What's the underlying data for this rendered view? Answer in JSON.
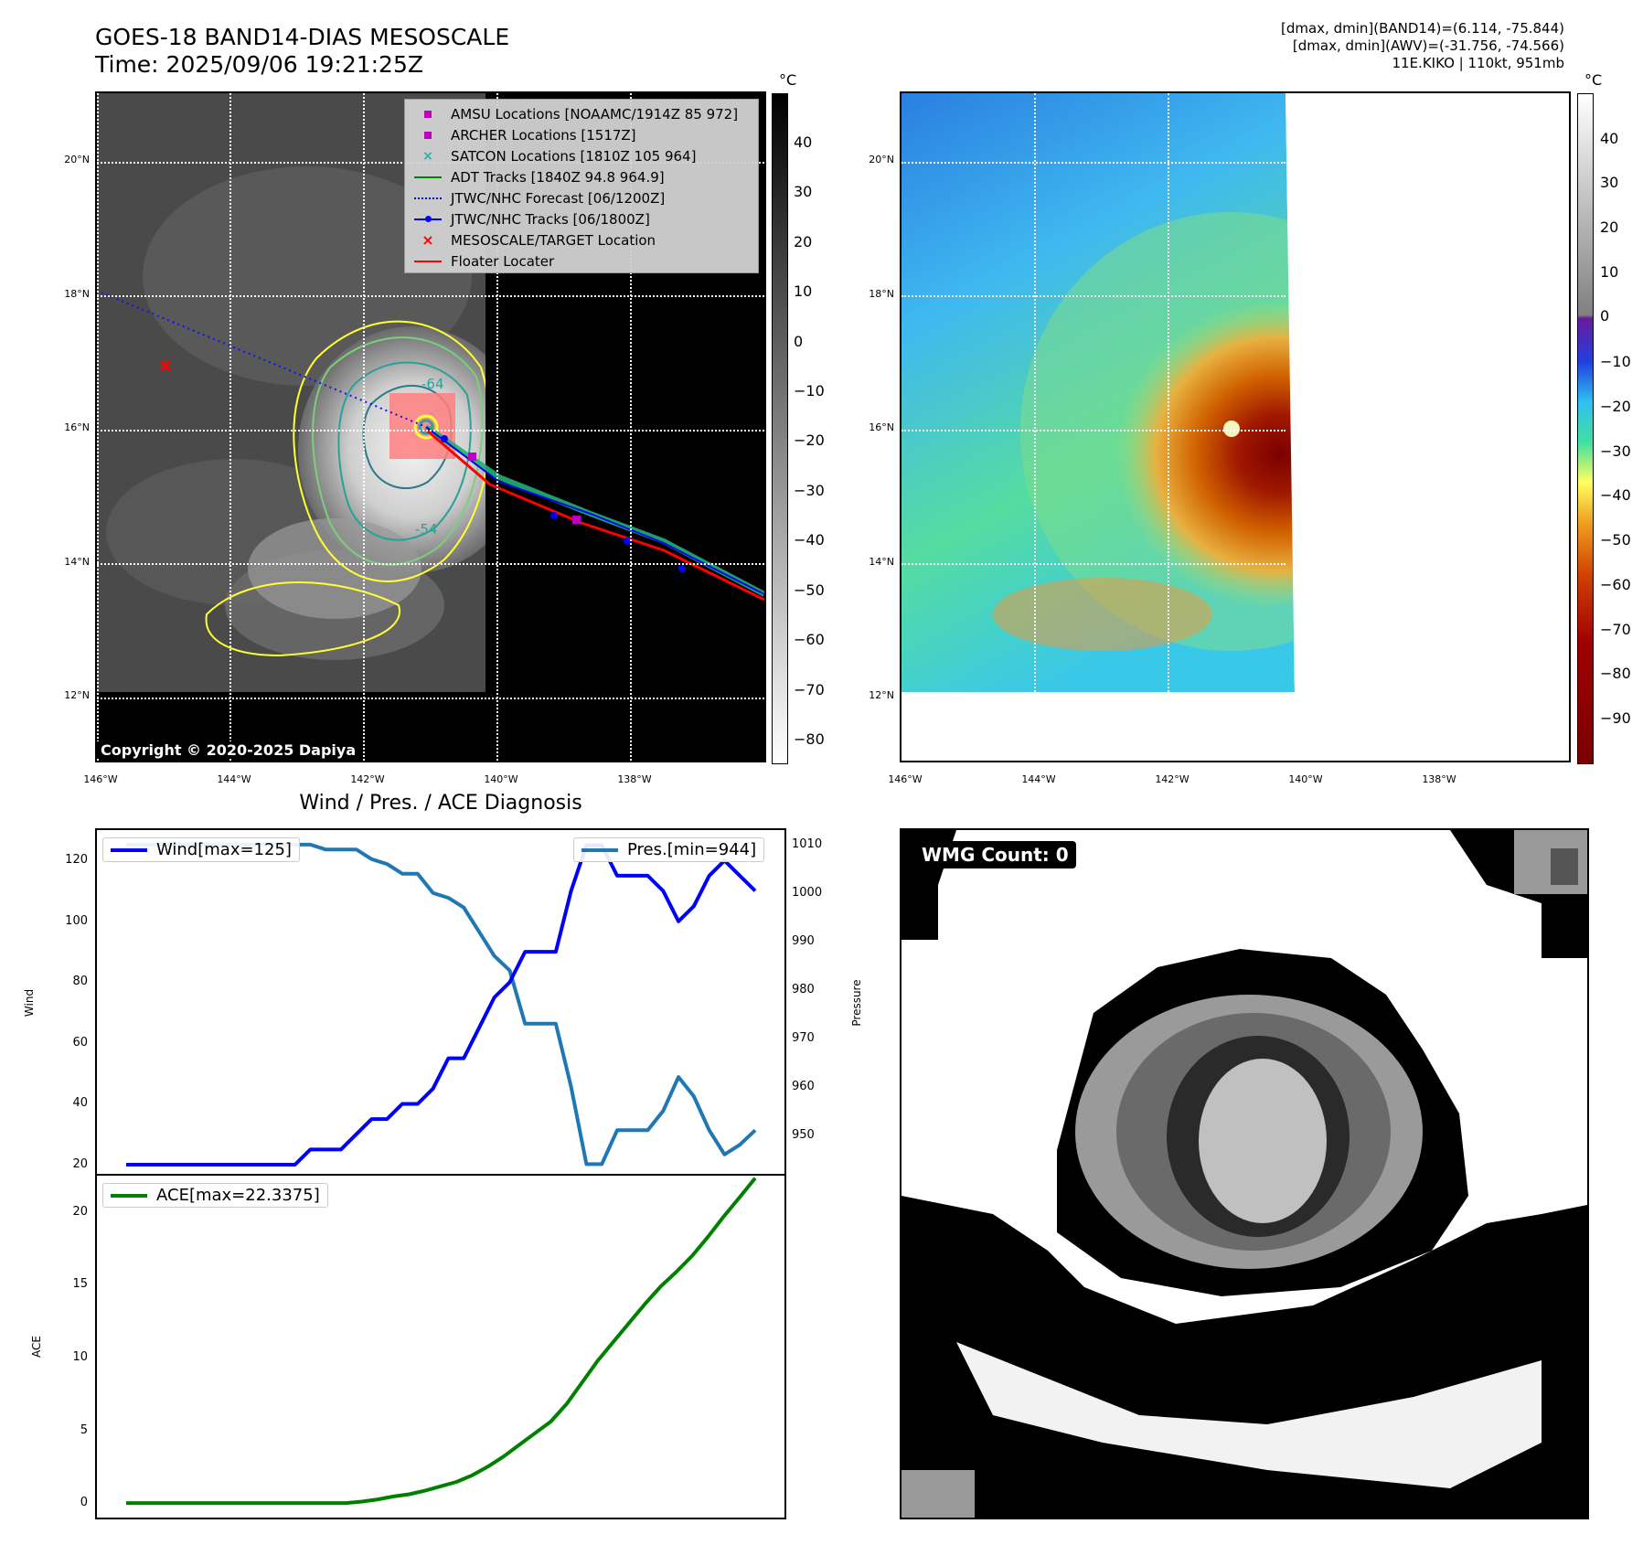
{
  "header": {
    "title_line1": "GOES-18 BAND14-DIAS MESOSCALE",
    "title_line2": "Time: 2025/09/06 19:21:25Z",
    "info_line1": "[dmax, dmin](BAND14)=(6.114, -75.844)",
    "info_line2": "[dmax, dmin](AWV)=(-31.756, -74.566)",
    "info_line3": "11E.KIKO | 110kt, 951mb"
  },
  "map": {
    "lat_labels": [
      "20°N",
      "18°N",
      "16°N",
      "14°N",
      "12°N"
    ],
    "lon_labels": [
      "146°W",
      "144°W",
      "142°W",
      "140°W",
      "138°W"
    ],
    "copyright": "Copyright © 2020-2025 Dapiya",
    "contour_labels": [
      "-64",
      "-54"
    ]
  },
  "legend": {
    "items": [
      {
        "label": "AMSU Locations [NOAAMC/1914Z 85 972]",
        "symbol": "square",
        "color": "#c000c0"
      },
      {
        "label": "ARCHER Locations [1517Z]",
        "symbol": "square",
        "color": "#c000c0"
      },
      {
        "label": "SATCON Locations [1810Z 105 964]",
        "symbol": "x",
        "color": "#20b0b0"
      },
      {
        "label": "ADT Tracks [1840Z 94.8 964.9]",
        "symbol": "line",
        "color": "#008000"
      },
      {
        "label": "JTWC/NHC Forecast [06/1200Z]",
        "symbol": "dotted",
        "color": "#0000ff"
      },
      {
        "label": "JTWC/NHC Tracks [06/1800Z]",
        "symbol": "line-dot",
        "color": "#0000ff"
      },
      {
        "label": "MESOSCALE/TARGET Location",
        "symbol": "x",
        "color": "#ff0000"
      },
      {
        "label": "Floater Locater",
        "symbol": "line",
        "color": "#ff0000"
      }
    ]
  },
  "colorbar_gray": {
    "unit": "°C",
    "ticks": [
      "40",
      "30",
      "20",
      "10",
      "0",
      "−10",
      "−20",
      "−30",
      "−40",
      "−50",
      "−60",
      "−70",
      "−80"
    ]
  },
  "colorbar_color": {
    "unit": "°C",
    "ticks": [
      "40",
      "30",
      "20",
      "10",
      "0",
      "−10",
      "−20",
      "−30",
      "−40",
      "−50",
      "−60",
      "−70",
      "−80",
      "−90"
    ]
  },
  "wmg": {
    "badge": "WMG Count: 0"
  },
  "diagnosis": {
    "title": "Wind / Pres. / ACE Diagnosis"
  },
  "chart_data": [
    {
      "type": "line",
      "title": "Wind / Pres. / ACE Diagnosis",
      "ylabel": "Wind",
      "y2label": "Pressure",
      "ylim": [
        17,
        130
      ],
      "y2lim": [
        942,
        1013
      ],
      "yticks": [
        20,
        40,
        60,
        80,
        100,
        120
      ],
      "y2ticks": [
        950,
        960,
        970,
        980,
        990,
        1000,
        1010
      ],
      "series": [
        {
          "name": "Wind[max=125]",
          "color": "#0000ff",
          "axis": "left",
          "values": [
            20,
            20,
            20,
            20,
            20,
            20,
            20,
            20,
            20,
            20,
            20,
            20,
            25,
            25,
            25,
            30,
            35,
            35,
            40,
            40,
            45,
            55,
            55,
            65,
            75,
            80,
            90,
            90,
            90,
            110,
            125,
            125,
            115,
            115,
            115,
            110,
            100,
            105,
            115,
            120,
            115,
            110
          ]
        },
        {
          "name": "Pres.[min=944]",
          "color": "#1f77b4",
          "axis": "right",
          "values": [
            1010,
            1010,
            1010,
            1010,
            1010,
            1010,
            1010,
            1010,
            1010,
            1010,
            1010,
            1010,
            1010,
            1009,
            1009,
            1009,
            1007,
            1006,
            1004,
            1004,
            1000,
            999,
            997,
            992,
            987,
            984,
            973,
            973,
            973,
            960,
            944,
            944,
            951,
            951,
            951,
            955,
            962,
            958,
            951,
            946,
            948,
            951
          ]
        }
      ]
    },
    {
      "type": "line",
      "ylabel": "ACE",
      "ylim": [
        -1,
        22.5
      ],
      "yticks": [
        0,
        5,
        10,
        15,
        20
      ],
      "series": [
        {
          "name": "ACE[max=22.3375]",
          "color": "#008000",
          "values": [
            0,
            0,
            0,
            0,
            0,
            0,
            0,
            0,
            0,
            0,
            0,
            0,
            0,
            0,
            0,
            0.1,
            0.25,
            0.45,
            0.6,
            0.85,
            1.15,
            1.45,
            1.9,
            2.5,
            3.2,
            4.0,
            4.8,
            5.6,
            6.8,
            8.3,
            9.8,
            11.1,
            12.4,
            13.7,
            14.9,
            15.9,
            17.0,
            18.3,
            19.7,
            21.0,
            22.3375
          ]
        }
      ]
    }
  ],
  "colors": {
    "map_background": "#000000",
    "cloud_gray": "#4a4a4a",
    "contour_yellow": "#ffff33",
    "contour_green": "#7ad07a",
    "contour_teal": "#2aa198"
  }
}
